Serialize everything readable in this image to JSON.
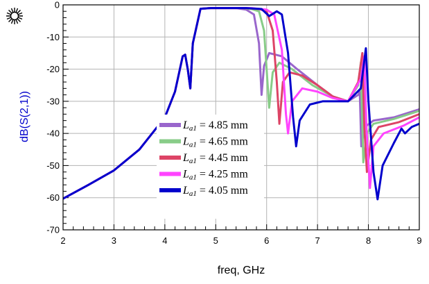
{
  "chart_data": {
    "type": "line",
    "xlabel": "freq, GHz",
    "ylabel": "dB(S(2,1))",
    "xlim": [
      2,
      9
    ],
    "ylim": [
      -70,
      0
    ],
    "x_ticks": [
      "2",
      "3",
      "4",
      "5",
      "6",
      "7",
      "8",
      "9"
    ],
    "y_ticks": [
      "0",
      "-10",
      "-20",
      "-30",
      "-40",
      "-50",
      "-60",
      "-70"
    ],
    "grid": true,
    "legend_position": "center-left",
    "legend_symbol": "L",
    "legend_subscript": "a1",
    "series": [
      {
        "name": "= 4.85 mm",
        "color": "#9966CC",
        "points": [
          [
            2,
            -60.3
          ],
          [
            2.5,
            -56
          ],
          [
            3,
            -51.5
          ],
          [
            3.5,
            -45
          ],
          [
            4,
            -35
          ],
          [
            4.2,
            -27
          ],
          [
            4.35,
            -16
          ],
          [
            4.4,
            -15.5
          ],
          [
            4.45,
            -20
          ],
          [
            4.5,
            -26
          ],
          [
            4.55,
            -12
          ],
          [
            4.7,
            -1.2
          ],
          [
            4.9,
            -1
          ],
          [
            5.2,
            -1
          ],
          [
            5.4,
            -1
          ],
          [
            5.6,
            -1.5
          ],
          [
            5.75,
            -3
          ],
          [
            5.85,
            -12
          ],
          [
            5.9,
            -28
          ],
          [
            5.95,
            -19
          ],
          [
            6.05,
            -15
          ],
          [
            6.3,
            -16
          ],
          [
            6.6,
            -20
          ],
          [
            7.0,
            -25
          ],
          [
            7.3,
            -28.5
          ],
          [
            7.6,
            -30
          ],
          [
            7.8,
            -28
          ],
          [
            7.83,
            -27
          ],
          [
            7.86,
            -44
          ],
          [
            7.93,
            -38
          ],
          [
            8.1,
            -36
          ],
          [
            8.5,
            -35
          ],
          [
            9,
            -32.5
          ]
        ]
      },
      {
        "name": "= 4.65 mm",
        "color": "#88CC88",
        "points": [
          [
            2,
            -60.3
          ],
          [
            2.5,
            -56
          ],
          [
            3,
            -51.5
          ],
          [
            3.5,
            -45
          ],
          [
            4,
            -35
          ],
          [
            4.2,
            -27
          ],
          [
            4.35,
            -16
          ],
          [
            4.4,
            -15.5
          ],
          [
            4.45,
            -20
          ],
          [
            4.5,
            -26
          ],
          [
            4.55,
            -12
          ],
          [
            4.7,
            -1.2
          ],
          [
            4.9,
            -1
          ],
          [
            5.2,
            -1
          ],
          [
            5.5,
            -1
          ],
          [
            5.7,
            -1.3
          ],
          [
            5.85,
            -2
          ],
          [
            5.95,
            -8
          ],
          [
            6.0,
            -20
          ],
          [
            6.05,
            -32
          ],
          [
            6.12,
            -21
          ],
          [
            6.25,
            -18
          ],
          [
            6.5,
            -20
          ],
          [
            6.9,
            -25
          ],
          [
            7.3,
            -28.5
          ],
          [
            7.6,
            -30
          ],
          [
            7.8,
            -25
          ],
          [
            7.85,
            -18
          ],
          [
            7.9,
            -49
          ],
          [
            7.97,
            -40
          ],
          [
            8.1,
            -37
          ],
          [
            8.5,
            -35.5
          ],
          [
            9,
            -33
          ]
        ]
      },
      {
        "name": "= 4.45 mm",
        "color": "#DD4466",
        "points": [
          [
            2,
            -60.3
          ],
          [
            2.5,
            -56
          ],
          [
            3,
            -51.5
          ],
          [
            3.5,
            -45
          ],
          [
            4,
            -35
          ],
          [
            4.2,
            -27
          ],
          [
            4.35,
            -16
          ],
          [
            4.4,
            -15.5
          ],
          [
            4.45,
            -20
          ],
          [
            4.5,
            -26
          ],
          [
            4.55,
            -12
          ],
          [
            4.7,
            -1.2
          ],
          [
            4.9,
            -1
          ],
          [
            5.2,
            -1
          ],
          [
            5.6,
            -1
          ],
          [
            5.85,
            -1.3
          ],
          [
            6.0,
            -2
          ],
          [
            6.12,
            -8
          ],
          [
            6.2,
            -24
          ],
          [
            6.25,
            -37
          ],
          [
            6.32,
            -24
          ],
          [
            6.45,
            -21
          ],
          [
            6.7,
            -22
          ],
          [
            7.0,
            -25
          ],
          [
            7.3,
            -28.5
          ],
          [
            7.6,
            -30
          ],
          [
            7.8,
            -24
          ],
          [
            7.88,
            -15
          ],
          [
            7.92,
            -38
          ],
          [
            7.97,
            -52
          ],
          [
            8.05,
            -42
          ],
          [
            8.2,
            -38
          ],
          [
            8.6,
            -36.5
          ],
          [
            9,
            -34
          ]
        ]
      },
      {
        "name": "= 4.25 mm",
        "color": "#FF44FF",
        "points": [
          [
            2,
            -60.3
          ],
          [
            2.5,
            -56
          ],
          [
            3,
            -51.5
          ],
          [
            3.5,
            -45
          ],
          [
            4,
            -35
          ],
          [
            4.2,
            -27
          ],
          [
            4.35,
            -16
          ],
          [
            4.4,
            -15.5
          ],
          [
            4.45,
            -20
          ],
          [
            4.5,
            -26
          ],
          [
            4.55,
            -12
          ],
          [
            4.7,
            -1.2
          ],
          [
            4.9,
            -1
          ],
          [
            5.2,
            -1
          ],
          [
            5.7,
            -1
          ],
          [
            6.0,
            -1.5
          ],
          [
            6.15,
            -3
          ],
          [
            6.3,
            -14
          ],
          [
            6.38,
            -34
          ],
          [
            6.42,
            -40
          ],
          [
            6.5,
            -30
          ],
          [
            6.7,
            -26
          ],
          [
            7.0,
            -27
          ],
          [
            7.3,
            -29
          ],
          [
            7.6,
            -30
          ],
          [
            7.85,
            -23
          ],
          [
            7.92,
            -16
          ],
          [
            7.96,
            -38
          ],
          [
            8.03,
            -57
          ],
          [
            8.1,
            -44
          ],
          [
            8.3,
            -40
          ],
          [
            8.7,
            -37.5
          ],
          [
            9,
            -35
          ]
        ]
      },
      {
        "name": "= 4.05 mm",
        "color": "#0000CC",
        "points": [
          [
            2,
            -60.3
          ],
          [
            2.5,
            -56
          ],
          [
            3,
            -51.5
          ],
          [
            3.5,
            -45
          ],
          [
            4,
            -35
          ],
          [
            4.2,
            -27
          ],
          [
            4.35,
            -16
          ],
          [
            4.4,
            -15.5
          ],
          [
            4.45,
            -20
          ],
          [
            4.5,
            -26
          ],
          [
            4.55,
            -12
          ],
          [
            4.7,
            -1.2
          ],
          [
            4.9,
            -1
          ],
          [
            5.2,
            -1
          ],
          [
            5.6,
            -1
          ],
          [
            5.9,
            -1.3
          ],
          [
            6.05,
            -3.5
          ],
          [
            6.2,
            -2
          ],
          [
            6.3,
            -3
          ],
          [
            6.42,
            -15
          ],
          [
            6.52,
            -35
          ],
          [
            6.58,
            -44
          ],
          [
            6.65,
            -36
          ],
          [
            6.85,
            -31
          ],
          [
            7.1,
            -30
          ],
          [
            7.4,
            -30
          ],
          [
            7.6,
            -30
          ],
          [
            7.85,
            -26
          ],
          [
            7.95,
            -13.5
          ],
          [
            8.0,
            -30
          ],
          [
            8.1,
            -52
          ],
          [
            8.18,
            -60.5
          ],
          [
            8.28,
            -50
          ],
          [
            8.5,
            -43
          ],
          [
            8.65,
            -38.5
          ],
          [
            8.72,
            -40
          ],
          [
            8.85,
            -38
          ],
          [
            9,
            -37
          ]
        ]
      }
    ]
  },
  "logo": {
    "icon": "sunburst-icon"
  }
}
